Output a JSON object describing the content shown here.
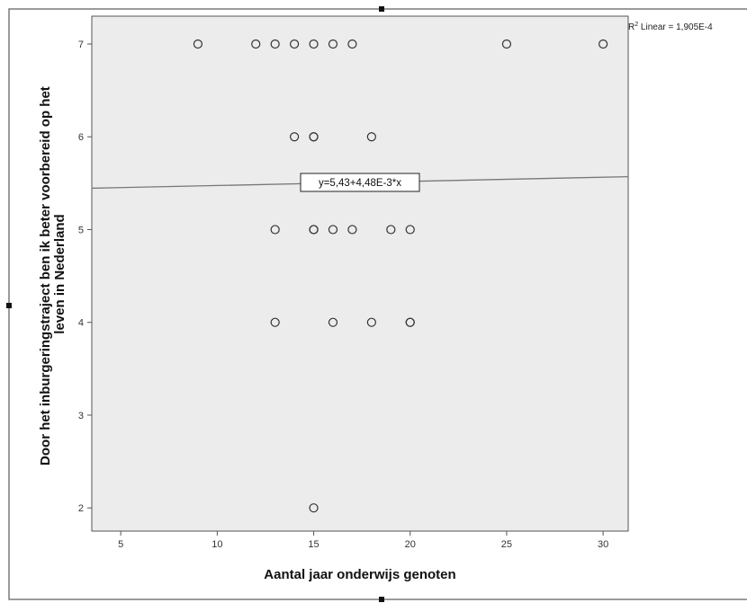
{
  "chart_data": {
    "type": "scatter",
    "xlabel": "Aantal jaar onderwijs genoten",
    "ylabel_lines": [
      "Door het inburgeringstraject ben ik beter voorbereid op het",
      "leven in Nederland"
    ],
    "xlim": [
      3.5,
      31.3
    ],
    "ylim": [
      1.75,
      7.3
    ],
    "x_ticks": [
      5,
      10,
      15,
      20,
      25,
      30
    ],
    "y_ticks": [
      2,
      3,
      4,
      5,
      6,
      7
    ],
    "points": [
      {
        "x": 9,
        "y": 7
      },
      {
        "x": 12,
        "y": 7
      },
      {
        "x": 13,
        "y": 7
      },
      {
        "x": 14,
        "y": 7
      },
      {
        "x": 15,
        "y": 7
      },
      {
        "x": 16,
        "y": 7
      },
      {
        "x": 17,
        "y": 7
      },
      {
        "x": 25,
        "y": 7
      },
      {
        "x": 30,
        "y": 7
      },
      {
        "x": 14,
        "y": 6
      },
      {
        "x": 15,
        "y": 6
      },
      {
        "x": 15,
        "y": 6
      },
      {
        "x": 18,
        "y": 6
      },
      {
        "x": 13,
        "y": 5
      },
      {
        "x": 15,
        "y": 5
      },
      {
        "x": 15,
        "y": 5
      },
      {
        "x": 16,
        "y": 5
      },
      {
        "x": 17,
        "y": 5
      },
      {
        "x": 19,
        "y": 5
      },
      {
        "x": 20,
        "y": 5
      },
      {
        "x": 13,
        "y": 4
      },
      {
        "x": 16,
        "y": 4
      },
      {
        "x": 18,
        "y": 4
      },
      {
        "x": 20,
        "y": 4
      },
      {
        "x": 20,
        "y": 4
      },
      {
        "x": 15,
        "y": 2
      }
    ],
    "fit_line": {
      "intercept": 5.43,
      "slope": 0.00448,
      "equation_label": "y=5,43+4,48E-3*x",
      "r2_prefix": "R",
      "r2_sup": "2",
      "r2_rest": " Linear = 1,905E-4"
    },
    "grid": false,
    "colors": {
      "plot_background": "#ececec",
      "marker_stroke": "#333333",
      "fit_line": "#777777",
      "frame": "#666666"
    }
  }
}
